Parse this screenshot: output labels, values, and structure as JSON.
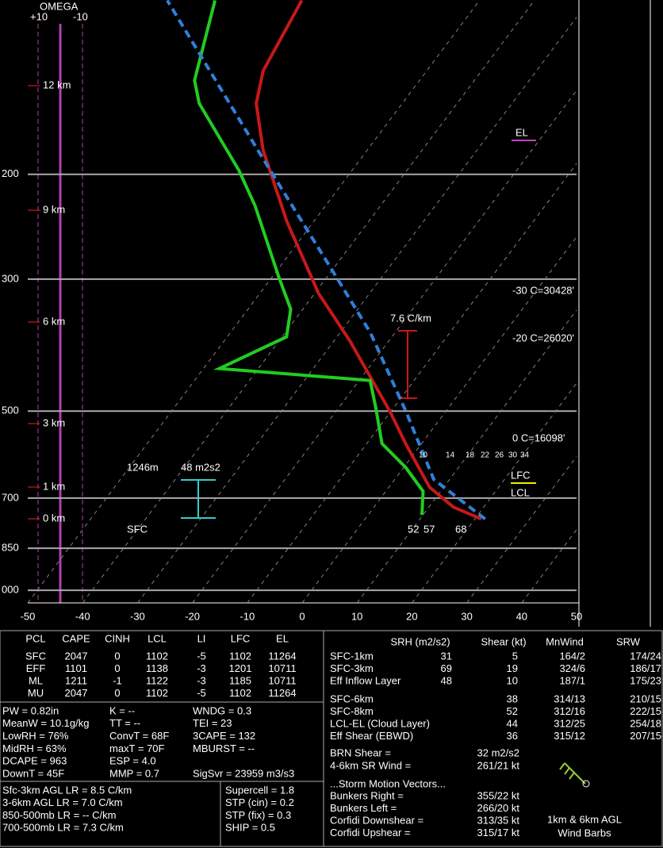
{
  "chart_data": {
    "type": "skewt",
    "xlim": [
      -50,
      50
    ],
    "xticks": [
      -50,
      -40,
      -30,
      -20,
      -10,
      0,
      10,
      20,
      30,
      40,
      50
    ],
    "ylim": [
      1050,
      100
    ],
    "yticks": [
      200,
      300,
      500,
      700,
      850,
      {
        "value": 1000,
        "label": "000"
      }
    ],
    "log_y": true,
    "grid": true,
    "series": [
      {
        "color": "#c81818",
        "x": [
          21.2,
          14.5,
          7.4,
          -2.9,
          -10.1,
          -27.1,
          -39.3,
          -54.9,
          -69,
          -76.6,
          -79.8,
          -82.4
        ],
        "y": [
          759,
          725,
          671,
          567,
          501,
          381,
          317,
          240,
          182,
          152,
          134,
          102
        ]
      },
      {
        "color": "#22cc22",
        "x": [
          9.8,
          6.8,
          0.4,
          -7.2,
          -13.2,
          -18,
          -47.1,
          -39.2,
          -42.2,
          -48.7,
          -62.8,
          -70.6,
          -87,
          -91,
          -98.2
        ],
        "y": [
          747,
          682,
          622,
          567,
          494,
          444,
          424,
          375,
          337,
          298,
          226,
          197,
          152,
          139,
          102
        ]
      },
      {
        "color": "#2f7fd8",
        "dash": true,
        "x": [
          21.9,
          7.1,
          -7.2,
          -24.5,
          -42.2,
          -67.9,
          -106.9
        ],
        "y": [
          759,
          651,
          501,
          369,
          280,
          188,
          102
        ]
      }
    ],
    "annotations": [
      "OMEGA",
      "+10",
      "-10",
      "12 km",
      "9 km",
      "6 km",
      "3 km",
      "1 km",
      "0 km",
      "EL",
      "-30 C=30428'",
      "-20 C=26020'",
      "0 C=16098'",
      "LFC",
      "LCL",
      "7.6 C/km",
      "1246m",
      "48 m2s2",
      "SFC",
      "52",
      "57",
      "68",
      "10",
      "14",
      "18",
      "22",
      "26",
      "30",
      "34"
    ]
  },
  "parcel_table": {
    "header": [
      "PCL",
      "CAPE",
      "CINH",
      "LCL",
      "LI",
      "LFC",
      "EL"
    ],
    "rows": [
      [
        "SFC",
        "2047",
        "0",
        "1102",
        "-5",
        "1102",
        "11264"
      ],
      [
        "EFF",
        "1101",
        "0",
        "1138",
        "-3",
        "1201",
        "10711"
      ],
      [
        "ML",
        "1211",
        "-1",
        "1122",
        "-3",
        "1185",
        "10711"
      ],
      [
        "MU",
        "2047",
        "0",
        "1102",
        "-5",
        "1102",
        "11264"
      ]
    ]
  },
  "indices": [
    [
      "PW = 0.82in",
      "K = --",
      "WNDG = 0.3"
    ],
    [
      "MeanW = 10.1g/kg",
      "TT = --",
      "TEI = 23"
    ],
    [
      "LowRH = 76%",
      "ConvT = 68F",
      "3CAPE = 132"
    ],
    [
      "MidRH = 63%",
      "maxT = 70F",
      "MBURST = --"
    ],
    [
      "DCAPE = 963",
      "ESP = 4.0"
    ],
    [
      "DownT = 45F",
      "MMP = 0.7",
      "SigSvr = 23959 m3/s3"
    ]
  ],
  "lapse_rates": [
    "Sfc-3km AGL LR = 8.5 C/km",
    "3-6km AGL LR = 7.0 C/km",
    "850-500mb LR = -- C/km",
    "700-500mb LR = 7.3 C/km"
  ],
  "composite": [
    "Supercell = 1.8",
    "STP (cin) = 0.2",
    "STP (fix) = 0.3",
    "SHIP = 0.5"
  ],
  "shear_table": {
    "header": [
      "SRH (m2/s2)",
      "Shear (kt)",
      "MnWind",
      "SRW"
    ],
    "rows": [
      [
        "SFC-1km",
        "31",
        "5",
        "164/2",
        "174/24"
      ],
      [
        "SFC-3km",
        "69",
        "19",
        "324/6",
        "186/17"
      ],
      [
        "Eff Inflow Layer",
        "48",
        "10",
        "187/1",
        "175/23"
      ]
    ],
    "rows_deep": [
      [
        "SFC-6km",
        "38",
        "314/13",
        "210/15"
      ],
      [
        "SFC-8km",
        "52",
        "312/16",
        "222/15"
      ],
      [
        "LCL-EL (Cloud Layer)",
        "44",
        "312/25",
        "254/18"
      ],
      [
        "Eff Shear (EBWD)",
        "36",
        "315/12",
        "207/15"
      ]
    ]
  },
  "storm": [
    [
      "BRN Shear =",
      "32 m2/s2"
    ],
    [
      "4-6km SR Wind =",
      "261/21 kt"
    ]
  ],
  "storm_title": "...Storm Motion Vectors...",
  "motion": [
    [
      "Bunkers Right =",
      "355/22 kt"
    ],
    [
      "Bunkers Left =",
      "266/20 kt"
    ],
    [
      "Corfidi Downshear =",
      "313/35 kt"
    ],
    [
      "Corfidi Upshear =",
      "315/17 kt"
    ]
  ],
  "barb_caption": [
    "1km & 6km AGL",
    "Wind Barbs"
  ]
}
